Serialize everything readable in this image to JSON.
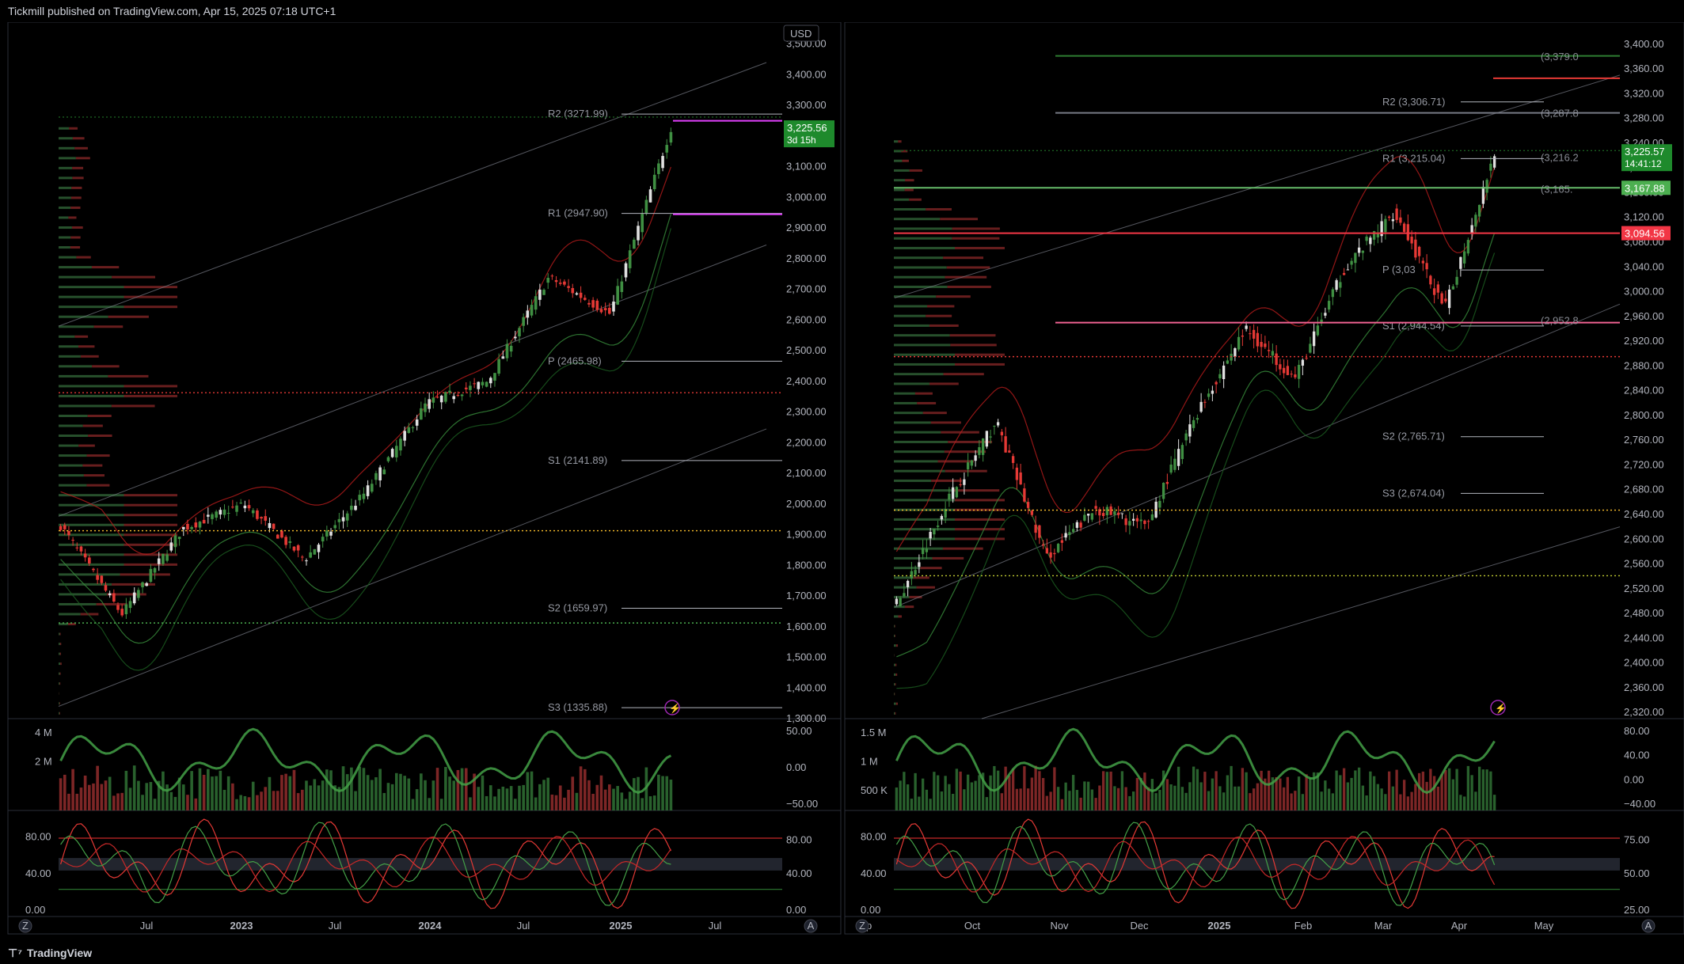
{
  "header": {
    "published": "Tickmill published on TradingView.com, Apr 15, 2025 07:18 UTC+1"
  },
  "footer": {
    "brand": "TradingView",
    "logo_icon": "tradingview-logo-icon"
  },
  "colors": {
    "up": "#26a69a",
    "down": "#ef5350",
    "green": "#4caf50",
    "red": "#f23645",
    "magenta": "#e040fb",
    "grid": "#1e222d"
  },
  "chart_data": [
    {
      "type": "candlestick",
      "panel": "left",
      "currency": "USD",
      "y_ticks": [
        "3,500.00",
        "3,400.00",
        "3,300.00",
        "3,200.00",
        "3,100.00",
        "3,000.00",
        "2,900.00",
        "2,800.00",
        "2,700.00",
        "2,600.00",
        "2,500.00",
        "2,400.00",
        "2,300.00",
        "2,200.00",
        "2,100.00",
        "2,000.00",
        "1,900.00",
        "1,800.00",
        "1,700.00",
        "1,600.00",
        "1,500.00",
        "1,400.00",
        "1,300.00"
      ],
      "ylim": [
        1300,
        3520
      ],
      "x_ticks": [
        "Jul",
        "2023",
        "Jul",
        "2024",
        "Jul",
        "2025",
        "Jul"
      ],
      "last_price": "3,225.56",
      "countdown": "3d 15h",
      "pivots": [
        {
          "label": "R2 (3271.99)",
          "value": 3271.99
        },
        {
          "label": "R1 (2947.90)",
          "value": 2947.9
        },
        {
          "label": "P (2465.98)",
          "value": 2465.98
        },
        {
          "label": "S1 (2141.89)",
          "value": 2141.89
        },
        {
          "label": "S2 (1659.97)",
          "value": 1659.97
        },
        {
          "label": "S3 (1335.88)",
          "value": 1335.88
        }
      ],
      "key_points": [
        {
          "date": "2022-04",
          "close": 1930
        },
        {
          "date": "2022-09",
          "close": 1640
        },
        {
          "date": "2023-01",
          "close": 1920
        },
        {
          "date": "2023-05",
          "close": 2000
        },
        {
          "date": "2023-10",
          "close": 1820
        },
        {
          "date": "2024-01",
          "close": 2040
        },
        {
          "date": "2024-04",
          "close": 2330
        },
        {
          "date": "2024-07",
          "close": 2400
        },
        {
          "date": "2024-10",
          "close": 2740
        },
        {
          "date": "2024-12",
          "close": 2620
        },
        {
          "date": "2025-04",
          "close": 3225.56
        }
      ],
      "volume_ticks": [
        "4 M",
        "2 M"
      ],
      "osc1_ticks": [
        "50.00",
        "0.00",
        "−50.00"
      ],
      "osc2_left_ticks": [
        "80.00",
        "40.00",
        "0.00"
      ],
      "osc2_right_ticks": [
        "80.00",
        "40.00",
        "0.00"
      ],
      "axis_buttons": [
        "Z",
        "A"
      ]
    },
    {
      "type": "candlestick",
      "panel": "right",
      "y_ticks": [
        "3,400.00",
        "3,360.00",
        "3,320.00",
        "3,280.00",
        "3,240.00",
        "3,200.00",
        "3,160.00",
        "3,120.00",
        "3,080.00",
        "3,040.00",
        "3,000.00",
        "2,960.00",
        "2,920.00",
        "2,880.00",
        "2,840.00",
        "2,800.00",
        "2,760.00",
        "2,720.00",
        "2,680.00",
        "2,640.00",
        "2,600.00",
        "2,560.00",
        "2,520.00",
        "2,480.00",
        "2,440.00",
        "2,400.00",
        "2,360.00",
        "2,320.00"
      ],
      "ylim": [
        2310,
        3410
      ],
      "x_ticks": [
        "ep",
        "Oct",
        "Nov",
        "Dec",
        "2025",
        "Feb",
        "Mar",
        "Apr",
        "May"
      ],
      "last_price": "3,225.57",
      "countdown": "14:41:12",
      "price_tags": [
        {
          "label": "3,167.88",
          "value": 3167.88,
          "color": "#4caf50"
        },
        {
          "label": "3,094.56",
          "value": 3094.56,
          "color": "#f23645"
        }
      ],
      "pivots": [
        {
          "label": "R2 (3,306.71)",
          "value": 3306.71
        },
        {
          "label": "R1 (3,215.04)",
          "value": 3215.04
        },
        {
          "label": "P (3,03",
          "value": 3035
        },
        {
          "label": "S1 (2,944.54)",
          "value": 2944.54
        },
        {
          "label": "S2 (2,765.71)",
          "value": 2765.71
        },
        {
          "label": "S3 (2,674.04)",
          "value": 2674.04
        }
      ],
      "faded_labels": [
        "(3,379.0",
        "(3,287.8",
        "(3,216.2",
        "(3,165.",
        "(2,952.8"
      ],
      "key_points": [
        {
          "date": "2024-09-01",
          "close": 2495
        },
        {
          "date": "2024-10-01",
          "close": 2660
        },
        {
          "date": "2024-10-31",
          "close": 2790
        },
        {
          "date": "2024-11-14",
          "close": 2570
        },
        {
          "date": "2024-12-01",
          "close": 2650
        },
        {
          "date": "2024-12-30",
          "close": 2620
        },
        {
          "date": "2025-02-01",
          "close": 2800
        },
        {
          "date": "2025-02-14",
          "close": 2940
        },
        {
          "date": "2025-02-28",
          "close": 2860
        },
        {
          "date": "2025-03-20",
          "close": 3040
        },
        {
          "date": "2025-04-02",
          "close": 3130
        },
        {
          "date": "2025-04-08",
          "close": 2970
        },
        {
          "date": "2025-04-14",
          "close": 3225.57
        }
      ],
      "volume_ticks": [
        "1.5 M",
        "1 M",
        "500 K"
      ],
      "osc1_ticks": [
        "80.00",
        "40.00",
        "0.00",
        "−40.00"
      ],
      "osc2_left_ticks": [
        "80.00",
        "40.00",
        "0.00"
      ],
      "osc2_right_ticks": [
        "75.00",
        "50.00",
        "25.00"
      ],
      "axis_buttons": [
        "Z",
        "A"
      ]
    }
  ]
}
